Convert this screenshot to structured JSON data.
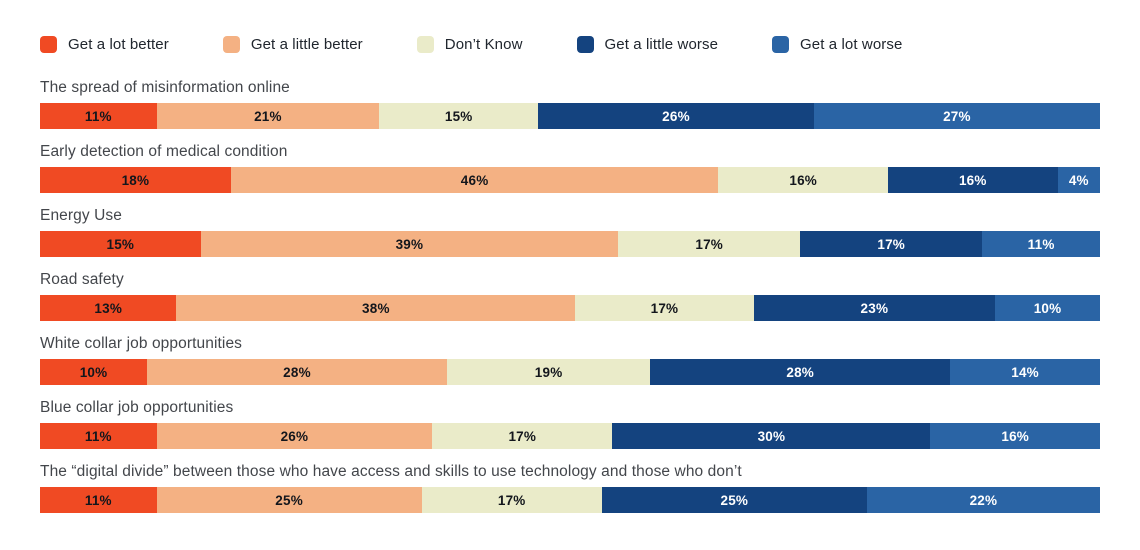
{
  "colors": {
    "background": "#ffffff",
    "row_title_text": "#43464b",
    "legend_text": "#20262e"
  },
  "legend": [
    {
      "label": "Get a lot better",
      "color": "#F04A23"
    },
    {
      "label": "Get a little better",
      "color": "#F4B183"
    },
    {
      "label": "Don’t Know",
      "color": "#EAEBC9"
    },
    {
      "label": "Get a little worse",
      "color": "#14437F"
    },
    {
      "label": "Get a lot worse",
      "color": "#2A64A5"
    }
  ],
  "chart_data": {
    "type": "bar",
    "stacked": true,
    "orientation": "horizontal",
    "value_suffix": "%",
    "xlim": [
      0,
      100
    ],
    "grid": false,
    "legend_position": "top",
    "categories": [
      "The spread of misinformation online",
      "Early detection of medical condition",
      "Energy Use",
      "Road safety",
      "White collar job opportunities",
      "Blue collar job opportunities",
      "The “digital divide” between those who have access and skills to use technology and those who don’t"
    ],
    "series": [
      {
        "name": "Get a lot better",
        "color": "#F04A23",
        "label_color": "#13161c",
        "values": [
          11,
          18,
          15,
          13,
          10,
          11,
          11
        ]
      },
      {
        "name": "Get a little better",
        "color": "#F4B183",
        "label_color": "#13161c",
        "values": [
          21,
          46,
          39,
          38,
          28,
          26,
          25
        ]
      },
      {
        "name": "Don’t Know",
        "color": "#EAEBC9",
        "label_color": "#13161c",
        "values": [
          15,
          16,
          17,
          17,
          19,
          17,
          17
        ]
      },
      {
        "name": "Get a little worse",
        "color": "#14437F",
        "label_color": "#ffffff",
        "values": [
          26,
          16,
          17,
          23,
          28,
          30,
          25
        ]
      },
      {
        "name": "Get a lot worse",
        "color": "#2A64A5",
        "label_color": "#ffffff",
        "values": [
          27,
          4,
          11,
          10,
          14,
          16,
          22
        ]
      }
    ]
  }
}
